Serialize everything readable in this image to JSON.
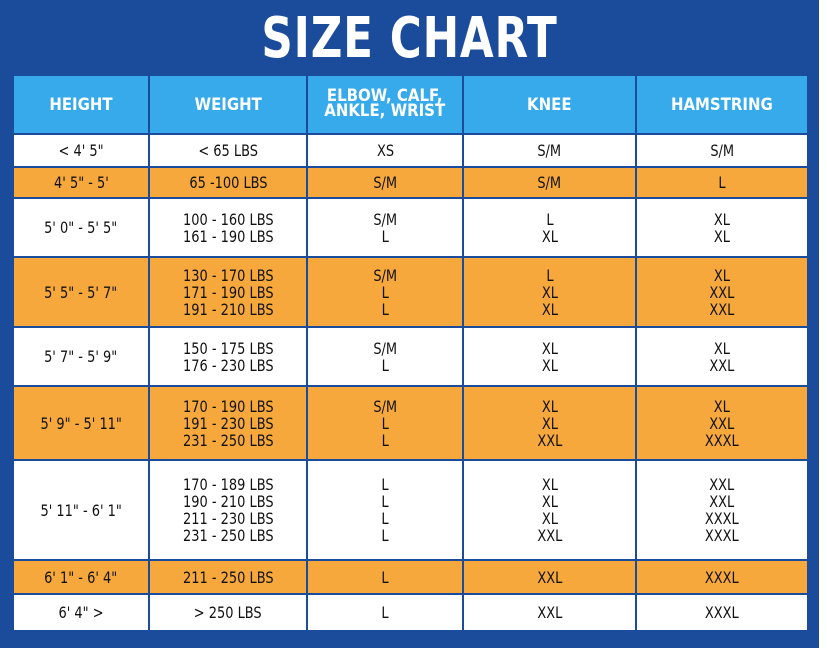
{
  "title": "SIZE CHART",
  "colors": {
    "frame": "#1b4b9b",
    "header": "#36aaea",
    "orange_row": "#f6a83d",
    "white_row": "#ffffff"
  },
  "headers": [
    [
      "HEIGHT"
    ],
    [
      "WEIGHT"
    ],
    [
      "ELBOW, CALF,",
      "ANKLE, WRIST"
    ],
    [
      "KNEE"
    ],
    [
      "HAMSTRING"
    ]
  ],
  "rows": [
    {
      "style": "white",
      "height": [
        "< 4' 5\""
      ],
      "weight": [
        "< 65 LBS"
      ],
      "elbow": [
        "XS"
      ],
      "knee": [
        "S/M"
      ],
      "hamstring": [
        "S/M"
      ]
    },
    {
      "style": "orange",
      "height": [
        "4' 5\" - 5'"
      ],
      "weight": [
        "65 -100 LBS"
      ],
      "elbow": [
        "S/M"
      ],
      "knee": [
        "S/M"
      ],
      "hamstring": [
        "L"
      ]
    },
    {
      "style": "white",
      "height": [
        "5' 0\" - 5' 5\""
      ],
      "weight": [
        "100 - 160 LBS",
        "161 - 190 LBS"
      ],
      "elbow": [
        "S/M",
        "L"
      ],
      "knee": [
        "L",
        "XL"
      ],
      "hamstring": [
        "XL",
        "XL"
      ]
    },
    {
      "style": "orange",
      "height": [
        "5' 5\" - 5' 7\""
      ],
      "weight": [
        "130 - 170 LBS",
        "171 - 190 LBS",
        "191 - 210 LBS"
      ],
      "elbow": [
        "S/M",
        "L",
        "L"
      ],
      "knee": [
        "L",
        "XL",
        "XL"
      ],
      "hamstring": [
        "XL",
        "XXL",
        "XXL"
      ]
    },
    {
      "style": "white",
      "height": [
        "5' 7\" - 5' 9\""
      ],
      "weight": [
        "150 - 175 LBS",
        "176 - 230 LBS"
      ],
      "elbow": [
        "S/M",
        "L"
      ],
      "knee": [
        "XL",
        "XL"
      ],
      "hamstring": [
        "XL",
        "XXL"
      ]
    },
    {
      "style": "orange",
      "height": [
        "5' 9\" - 5' 11\""
      ],
      "weight": [
        "170 - 190 LBS",
        "191 - 230 LBS",
        "231 - 250 LBS"
      ],
      "elbow": [
        "S/M",
        "L",
        "L"
      ],
      "knee": [
        "XL",
        "XL",
        "XXL"
      ],
      "hamstring": [
        "XL",
        "XXL",
        "XXXL"
      ]
    },
    {
      "style": "white",
      "height": [
        "5' 11\" - 6' 1\""
      ],
      "weight": [
        "170 - 189 LBS",
        "190 - 210 LBS",
        "211 - 230 LBS",
        "231 - 250 LBS"
      ],
      "elbow": [
        "L",
        "L",
        "L",
        "L"
      ],
      "knee": [
        "XL",
        "XL",
        "XL",
        "XXL"
      ],
      "hamstring": [
        "XXL",
        "XXL",
        "XXXL",
        "XXXL"
      ]
    },
    {
      "style": "orange",
      "height": [
        "6' 1\" - 6' 4\""
      ],
      "weight": [
        "211 - 250 LBS"
      ],
      "elbow": [
        "L"
      ],
      "knee": [
        "XXL"
      ],
      "hamstring": [
        "XXXL"
      ]
    },
    {
      "style": "white",
      "height": [
        "6' 4\" >"
      ],
      "weight": [
        "> 250 LBS"
      ],
      "elbow": [
        "L"
      ],
      "knee": [
        "XXL"
      ],
      "hamstring": [
        "XXXL"
      ]
    }
  ]
}
